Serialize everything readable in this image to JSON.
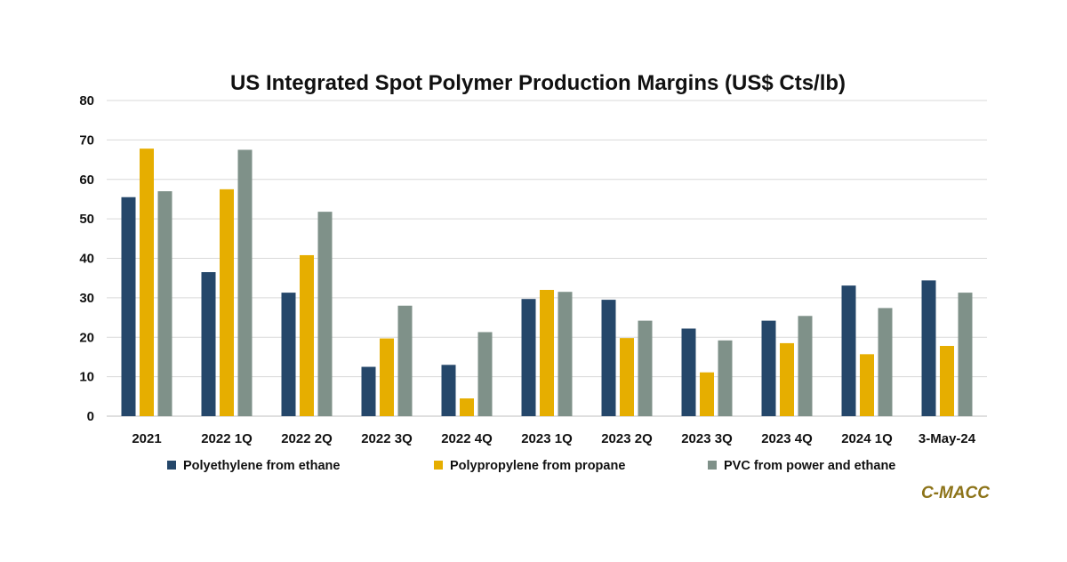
{
  "chart_data": {
    "type": "bar",
    "title": "US Integrated Spot Polymer Production Margins (US$ Cts/lb)",
    "xlabel": "",
    "ylabel": "",
    "ylim": [
      0,
      80
    ],
    "yticks": [
      0,
      10,
      20,
      30,
      40,
      50,
      60,
      70,
      80
    ],
    "grid": true,
    "legend": "bottom",
    "categories": [
      "2021",
      "2022 1Q",
      "2022 2Q",
      "2022 3Q",
      "2022 4Q",
      "2023 1Q",
      "2023 2Q",
      "2023 3Q",
      "2023 4Q",
      "2024 1Q",
      "3-May-24"
    ],
    "series": [
      {
        "name": "Polyethylene from ethane",
        "color": "#25476a",
        "values": [
          55.5,
          36.5,
          31.3,
          12.5,
          13.0,
          29.7,
          29.5,
          22.2,
          24.2,
          33.1,
          34.4
        ]
      },
      {
        "name": "Polypropylene from propane",
        "color": "#e6ae00",
        "values": [
          67.8,
          57.5,
          40.8,
          19.7,
          4.5,
          32.0,
          19.8,
          11.1,
          18.5,
          15.7,
          17.8
        ]
      },
      {
        "name": "PVC from power and ethane",
        "color": "#7f9189",
        "values": [
          57.0,
          67.5,
          51.8,
          28.0,
          21.3,
          31.5,
          24.2,
          19.2,
          25.4,
          27.4,
          31.3
        ]
      }
    ]
  },
  "source": {
    "label": "C-MACC",
    "color": "#8c7318"
  }
}
